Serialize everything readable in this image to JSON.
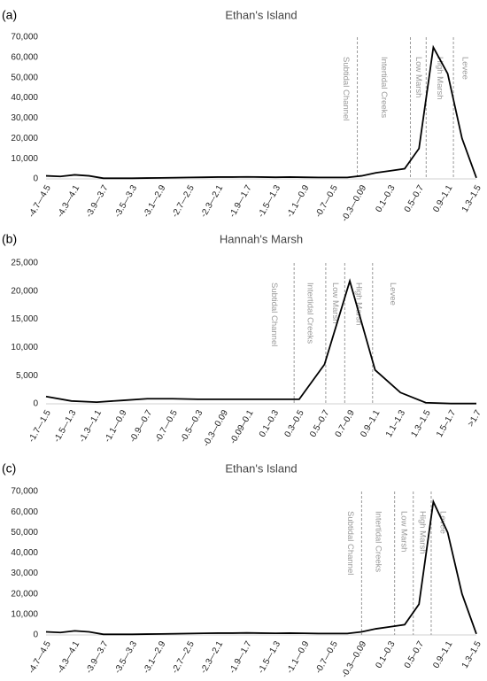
{
  "chart_data": [
    {
      "type": "line",
      "panel": "(a)",
      "title": "Ethan's Island",
      "categories": [
        "-4.7–-4.5",
        null,
        "-4.3–-4.1",
        null,
        "-3.9–-3.7",
        null,
        "-3.5–-3.3",
        null,
        "-3.1–-2.9",
        null,
        "-2.7–-2.5",
        null,
        "-2.3–-2.1",
        null,
        "-1.9–-1.7",
        null,
        "-1.5–-1.3",
        null,
        "-1.1–-0.9",
        null,
        "-0.7–-0.5",
        null,
        "-0.3–-0.09",
        null,
        "0.1–0.3",
        null,
        "0.5–0.7",
        null,
        "0.9–1.1",
        null,
        "1.3–1.5"
      ],
      "values": [
        1500,
        1200,
        2000,
        1500,
        300,
        300,
        300,
        400,
        500,
        600,
        700,
        800,
        900,
        900,
        1000,
        900,
        800,
        900,
        800,
        700,
        700,
        700,
        1500,
        3000,
        4000,
        5000,
        15000,
        65000,
        52000,
        20000,
        500
      ],
      "color": "#000000",
      "zones": [
        "Subtidal Channel",
        "Intertidal Creeks",
        "Low Marsh",
        "High Marsh",
        "Levee"
      ],
      "ylim": [
        0,
        70000
      ],
      "yticks": [
        0,
        {
          "value": 10000,
          "label": "10,000"
        },
        {
          "value": 20000,
          "label": "20,000"
        },
        {
          "value": 30000,
          "label": "30,000"
        },
        {
          "value": 40000,
          "label": "40,000"
        },
        {
          "value": 50000,
          "label": "50,000"
        },
        {
          "value": 60000,
          "label": "60,000"
        },
        {
          "value": 70000,
          "label": "70,000"
        }
      ]
    },
    {
      "type": "line",
      "panel": "(b)",
      "title": "Hannah's Marsh",
      "categories": [
        "-1.7–-1.5",
        "-1.5–-1.3",
        "-1.3–-1.1",
        "-1.1–-0.9",
        "-0.9–-0.7",
        "-0.7–-0.5",
        "-0.5–-0.3",
        "-0.3–-0.09",
        "-0.09–0.1",
        "0.1–0.3",
        "0.3–0.5",
        "0.5–0.7",
        "0.7–0.9",
        "0.9–1.1",
        "1.1–1.3",
        "1.3–1.5",
        "1.5–1.7",
        ">1.7"
      ],
      "values": [
        1300,
        500,
        300,
        600,
        900,
        900,
        800,
        800,
        800,
        800,
        800,
        7000,
        21800,
        6000,
        2000,
        200,
        50,
        50
      ],
      "color": "#000000",
      "zones": [
        "Subtidal Channel",
        "Intertidal Creeks",
        "Low Marsh",
        "High Marsh",
        "Levee"
      ],
      "ylim": [
        0,
        25000
      ],
      "yticks": [
        0,
        {
          "value": 5000,
          "label": "5,000"
        },
        {
          "value": 10000,
          "label": "10,000"
        },
        {
          "value": 15000,
          "label": "15,000"
        },
        {
          "value": 20000,
          "label": "20,000"
        },
        {
          "value": 25000,
          "label": "25,000"
        }
      ]
    },
    {
      "type": "line",
      "panel": "(c)",
      "title": "Ethan's Island",
      "categories": [
        "-4.7–-4.5",
        null,
        "-4.3–-4.1",
        null,
        "-3.9–-3.7",
        null,
        "-3.5–-3.3",
        null,
        "-3.1–-2.9",
        null,
        "-2.7–-2.5",
        null,
        "-2.3–-2.1",
        null,
        "-1.9–-1.7",
        null,
        "-1.5–-1.3",
        null,
        "-1.1–-0.9",
        null,
        "-0.7–-0.5",
        null,
        "-0.3–-0.09",
        null,
        "0.1–0.3",
        null,
        "0.5–0.7",
        null,
        "0.9–1.1",
        null,
        "1.3–1.5"
      ],
      "values": [
        1500,
        1200,
        2000,
        1500,
        300,
        300,
        300,
        400,
        500,
        600,
        700,
        800,
        900,
        900,
        1000,
        900,
        800,
        900,
        800,
        700,
        700,
        700,
        1500,
        3000,
        4000,
        5000,
        15000,
        65000,
        50000,
        20000,
        500
      ],
      "color": "#000000",
      "zones": [
        "Subtidal Channel",
        "Intertidal Creeks",
        "Low Marsh",
        "High Marsh",
        "Levee"
      ],
      "ylim": [
        0,
        70000
      ],
      "yticks": [
        0,
        {
          "value": 10000,
          "label": "10,000"
        },
        {
          "value": 20000,
          "label": "20,000"
        },
        {
          "value": 30000,
          "label": "30,000"
        },
        {
          "value": 40000,
          "label": "40,000"
        },
        {
          "value": 50000,
          "label": "50,000"
        },
        {
          "value": 60000,
          "label": "60,000"
        },
        {
          "value": 70000,
          "label": "70,000"
        }
      ]
    }
  ]
}
